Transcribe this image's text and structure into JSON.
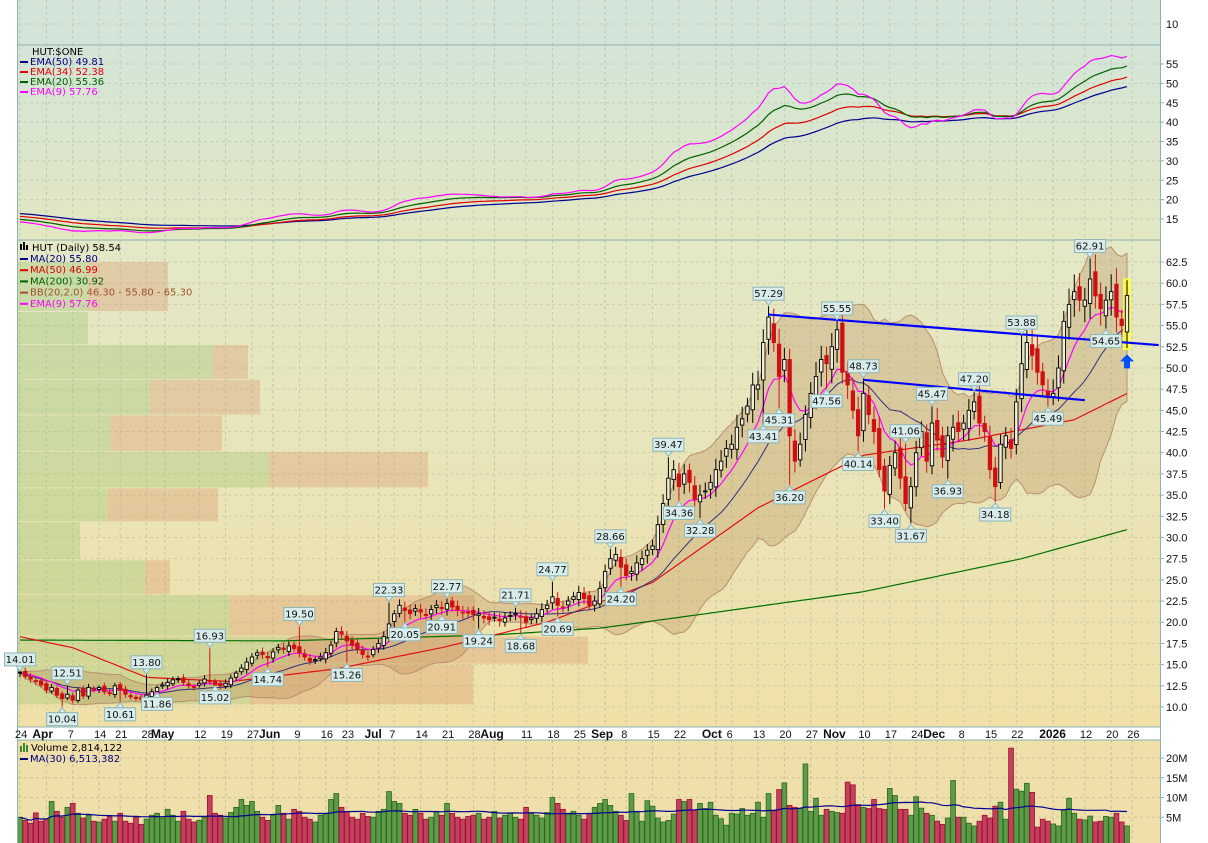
{
  "top_panel": {
    "axis_label": "10"
  },
  "ratio_panel": {
    "title": "HUT:$ONE",
    "legend": [
      {
        "label": "EMA(50) 49.81",
        "color": "#000080"
      },
      {
        "label": "EMA(34) 52.38",
        "color": "#e00000"
      },
      {
        "label": "EMA(20) 55.36",
        "color": "#006000"
      },
      {
        "label": "EMA(9) 57.76",
        "color": "#ff00ff"
      }
    ],
    "ticks": [
      15,
      20,
      25,
      30,
      35,
      40,
      45,
      50,
      55
    ]
  },
  "price_panel": {
    "title": "HUT (Daily) 58.54",
    "legend": [
      {
        "label": "MA(20) 55.80",
        "color": "#000080"
      },
      {
        "label": "MA(50) 46.99",
        "color": "#e00000"
      },
      {
        "label": "MA(200) 30.92",
        "color": "#006000"
      },
      {
        "label": "BB(20,2.0) 46.30 - 55.80 - 65.30",
        "color": "#a0522d"
      },
      {
        "label": "EMA(9) 57.76",
        "color": "#ff00ff"
      }
    ],
    "ticks": [
      "10.0",
      "12.5",
      "15.0",
      "17.5",
      "20.0",
      "22.5",
      "25.0",
      "27.5",
      "30.0",
      "32.5",
      "35.0",
      "37.5",
      "40.0",
      "42.5",
      "45.0",
      "47.5",
      "50.0",
      "52.5",
      "55.0",
      "57.5",
      "60.0",
      "62.5"
    ]
  },
  "volume_panel": {
    "title": "Volume 2,814,122",
    "ma_label": "MA(30) 6,513,382",
    "ticks": [
      "5M",
      "10M",
      "15M",
      "20M"
    ]
  },
  "x_axis": [
    {
      "label": "24",
      "i": 0,
      "bold": false
    },
    {
      "label": "Apr",
      "i": 5,
      "bold": true
    },
    {
      "label": "7",
      "i": 10,
      "bold": false
    },
    {
      "label": "14",
      "i": 15,
      "bold": false
    },
    {
      "label": "21",
      "i": 19,
      "bold": false
    },
    {
      "label": "28",
      "i": 24,
      "bold": false
    },
    {
      "label": "May",
      "i": 27.5,
      "bold": true
    },
    {
      "label": "12",
      "i": 34,
      "bold": false
    },
    {
      "label": "19",
      "i": 39,
      "bold": false
    },
    {
      "label": "27",
      "i": 44,
      "bold": false
    },
    {
      "label": "Jun",
      "i": 48,
      "bold": true
    },
    {
      "label": "9",
      "i": 53,
      "bold": false
    },
    {
      "label": "16",
      "i": 58,
      "bold": false
    },
    {
      "label": "23",
      "i": 62,
      "bold": false
    },
    {
      "label": "Jul",
      "i": 68,
      "bold": true
    },
    {
      "label": "7",
      "i": 71,
      "bold": false
    },
    {
      "label": "14",
      "i": 76,
      "bold": false
    },
    {
      "label": "21",
      "i": 81,
      "bold": false
    },
    {
      "label": "28",
      "i": 86,
      "bold": false
    },
    {
      "label": "Aug",
      "i": 90,
      "bold": true
    },
    {
      "label": "11",
      "i": 96,
      "bold": false
    },
    {
      "label": "18",
      "i": 101,
      "bold": false
    },
    {
      "label": "25",
      "i": 106,
      "bold": false
    },
    {
      "label": "Sep",
      "i": 111,
      "bold": true
    },
    {
      "label": "8",
      "i": 115,
      "bold": false
    },
    {
      "label": "15",
      "i": 120,
      "bold": false
    },
    {
      "label": "22",
      "i": 125,
      "bold": false
    },
    {
      "label": "Oct",
      "i": 132,
      "bold": true
    },
    {
      "label": "6",
      "i": 135,
      "bold": false
    },
    {
      "label": "13",
      "i": 140,
      "bold": false
    },
    {
      "label": "20",
      "i": 145,
      "bold": false
    },
    {
      "label": "27",
      "i": 150,
      "bold": false
    },
    {
      "label": "Nov",
      "i": 155,
      "bold": true
    },
    {
      "label": "10",
      "i": 160,
      "bold": false
    },
    {
      "label": "17",
      "i": 165,
      "bold": false
    },
    {
      "label": "24",
      "i": 170,
      "bold": false
    },
    {
      "label": "Dec",
      "i": 174,
      "bold": true
    },
    {
      "label": "8",
      "i": 179,
      "bold": false
    },
    {
      "label": "15",
      "i": 184,
      "bold": false
    },
    {
      "label": "22",
      "i": 189,
      "bold": false
    },
    {
      "label": "2026",
      "i": 196,
      "bold": true
    },
    {
      "label": "12",
      "i": 202,
      "bold": false
    },
    {
      "label": "20",
      "i": 207,
      "bold": false
    },
    {
      "label": "26",
      "i": 211,
      "bold": false
    }
  ],
  "chart_data": {
    "type": "candlestick",
    "symbol": "HUT",
    "period": "Daily",
    "ylim": [
      10,
      62.5
    ],
    "price": {
      "closes": [
        14.0,
        13.6,
        13.3,
        13.0,
        12.6,
        12.0,
        12.3,
        11.4,
        11.0,
        11.5,
        10.8,
        12.0,
        11.3,
        12.3,
        12.0,
        12.3,
        11.8,
        11.6,
        12.5,
        12.0,
        11.5,
        11.2,
        11.0,
        10.9,
        11.4,
        11.8,
        12.3,
        12.6,
        12.9,
        13.2,
        13.3,
        12.9,
        12.5,
        12.4,
        12.8,
        13.3,
        13.0,
        12.6,
        12.5,
        12.8,
        13.4,
        14.0,
        14.6,
        15.3,
        15.9,
        16.4,
        16.2,
        15.8,
        16.5,
        17.0,
        16.8,
        17.2,
        16.9,
        16.4,
        15.9,
        15.4,
        15.6,
        15.9,
        16.4,
        17.3,
        18.9,
        18.6,
        17.8,
        17.3,
        16.8,
        16.2,
        16.0,
        16.8,
        17.5,
        18.3,
        19.8,
        21.0,
        22.0,
        21.4,
        21.0,
        21.6,
        21.2,
        20.8,
        21.5,
        22.0,
        21.7,
        22.2,
        21.8,
        21.4,
        21.2,
        21.1,
        20.9,
        21.0,
        20.5,
        20.3,
        20.6,
        20.2,
        20.5,
        20.8,
        21.0,
        20.7,
        20.0,
        20.5,
        21.0,
        21.5,
        22.0,
        23.0,
        22.0,
        21.8,
        22.5,
        23.0,
        23.5,
        22.8,
        22.0,
        22.5,
        24.0,
        26.0,
        27.5,
        28.0,
        26.5,
        25.5,
        26.0,
        27.0,
        27.5,
        28.5,
        29.0,
        31.5,
        34.0,
        37.0,
        38.0,
        36.0,
        37.5,
        36.5,
        34.5,
        35.0,
        35.5,
        36.5,
        38.0,
        39.0,
        40.5,
        41.0,
        43.0,
        44.0,
        45.5,
        48.0,
        48.0,
        53.0,
        56.0,
        53.0,
        49.0,
        51.0,
        42.0,
        39.0,
        41.0,
        44.5,
        47.0,
        49.0,
        51.0,
        50.5,
        52.5,
        54.5,
        49.5,
        48.0,
        45.0,
        42.0,
        47.0,
        44.5,
        42.5,
        38.0,
        35.5,
        38.5,
        40.0,
        37.0,
        34.0,
        36.0,
        40.0,
        42.5,
        39.0,
        43.5,
        41.5,
        39.5,
        42.0,
        43.0,
        42.5,
        43.5,
        45.0,
        46.0,
        43.5,
        42.5,
        38.0,
        36.0,
        41.0,
        42.0,
        40.5,
        46.0,
        50.5,
        53.0,
        51.5,
        49.5,
        48.0,
        46.5,
        47.0,
        50.0,
        55.5,
        57.5,
        59.0,
        58.0,
        58.0,
        60.5,
        58.5,
        57.0,
        58.0,
        59.0,
        56.0,
        55.0,
        58.54
      ],
      "last_close": 58.54
    },
    "volume_millions": [
      5.0,
      4.2,
      3.5,
      6.1,
      4.0,
      4.5,
      9.0,
      6.5,
      5.0,
      7.5,
      8.5,
      6.0,
      4.8,
      5.5,
      4.0,
      3.8,
      4.5,
      5.2,
      4.0,
      6.0,
      4.0,
      3.5,
      5.0,
      3.2,
      4.5,
      5.5,
      6.0,
      4.8,
      7.0,
      5.5,
      4.0,
      6.5,
      4.5,
      3.8,
      4.2,
      5.0,
      10.5,
      6.0,
      5.5,
      4.8,
      6.2,
      7.5,
      9.5,
      8.0,
      9.0,
      6.5,
      5.0,
      4.2,
      5.5,
      8.0,
      6.0,
      4.5,
      7.0,
      6.5,
      5.0,
      4.5,
      3.8,
      5.5,
      6.0,
      9.5,
      11.0,
      7.5,
      6.5,
      5.0,
      4.5,
      6.0,
      5.2,
      5.0,
      6.5,
      7.0,
      11.5,
      9.0,
      8.5,
      6.0,
      5.5,
      7.0,
      6.0,
      4.5,
      5.0,
      6.5,
      5.5,
      8.5,
      6.0,
      5.0,
      4.5,
      5.2,
      5.5,
      6.0,
      4.5,
      5.0,
      6.5,
      4.8,
      5.5,
      6.0,
      5.0,
      4.5,
      7.5,
      6.0,
      5.5,
      4.8,
      6.2,
      10.0,
      8.5,
      7.0,
      6.0,
      6.5,
      5.5,
      4.5,
      6.0,
      7.5,
      8.5,
      9.5,
      8.0,
      6.5,
      5.5,
      4.2,
      11.0,
      6.5,
      4.0,
      9.2,
      7.8,
      4.8,
      3.8,
      4.2,
      5.8,
      9.5,
      9.0,
      9.5,
      6.8,
      8.5,
      7.2,
      8.8,
      5.5,
      4.6,
      3.0,
      6.0,
      5.8,
      7.2,
      5.5,
      6.0,
      8.8,
      5.0,
      11.0,
      6.8,
      12.0,
      13.7,
      8.0,
      7.5,
      7.2,
      18.5,
      6.5,
      9.8,
      5.5,
      7.0,
      6.5,
      6.2,
      6.0,
      13.9,
      13.2,
      8.2,
      7.5,
      7.2,
      9.5,
      7.2,
      7.0,
      12.3,
      10.5,
      7.0,
      7.0,
      5.5,
      10.2,
      7.3,
      6.0,
      5.5,
      4.0,
      3.2,
      4.8,
      14.3,
      5.0,
      5.0,
      3.5,
      2.8,
      4.0,
      5.5,
      4.8,
      7.8,
      8.8,
      4.5,
      22.5,
      12.1,
      11.6,
      13.6,
      11.3,
      2.5,
      4.5,
      4.0,
      3.3,
      2.8,
      6.8,
      9.8,
      6.0,
      4.5,
      4.3,
      5.3,
      3.8,
      4.0,
      5.2,
      5.0,
      6.0,
      3.8,
      2.81
    ],
    "volume_ylim_millions": [
      0,
      25
    ],
    "ma50_keypoints": [
      [
        0,
        18.3
      ],
      [
        10,
        17.0
      ],
      [
        20,
        14.5
      ],
      [
        24,
        13.5
      ],
      [
        40,
        13.0
      ],
      [
        60,
        14.5
      ],
      [
        80,
        17.0
      ],
      [
        100,
        20.0
      ],
      [
        120,
        24.7
      ],
      [
        140,
        33.5
      ],
      [
        160,
        39.7
      ],
      [
        180,
        41.5
      ],
      [
        200,
        43.9
      ],
      [
        210,
        46.99
      ]
    ],
    "ma200_keypoints": [
      [
        0,
        17.9
      ],
      [
        50,
        17.8
      ],
      [
        90,
        18.5
      ],
      [
        110,
        19.3
      ],
      [
        130,
        21.0
      ],
      [
        160,
        23.6
      ],
      [
        190,
        27.5
      ],
      [
        210,
        30.92
      ]
    ],
    "ratio_ema_seeds": {
      "ema50": 16.5,
      "ema34": 15.8,
      "ema20": 15.0,
      "ema9": 14.3
    },
    "annotations": [
      {
        "text": "14.01",
        "i": 0,
        "pos": "above"
      },
      {
        "text": "12.51",
        "i": 9,
        "pos": "above"
      },
      {
        "text": "10.04",
        "i": 8,
        "pos": "below"
      },
      {
        "text": "10.61",
        "i": 19,
        "pos": "below"
      },
      {
        "text": "13.80",
        "i": 24,
        "pos": "above"
      },
      {
        "text": "11.86",
        "i": 26,
        "pos": "below"
      },
      {
        "text": "16.93",
        "i": 36,
        "pos": "above"
      },
      {
        "text": "15.02",
        "i": 37,
        "pos": "below"
      },
      {
        "text": "14.74",
        "i": 47,
        "pos": "below"
      },
      {
        "text": "19.50",
        "i": 53,
        "pos": "above"
      },
      {
        "text": "15.26",
        "i": 62,
        "pos": "below"
      },
      {
        "text": "22.33",
        "i": 70,
        "pos": "above"
      },
      {
        "text": "20.05",
        "i": 73,
        "pos": "below"
      },
      {
        "text": "22.77",
        "i": 81,
        "pos": "above"
      },
      {
        "text": "20.91",
        "i": 80,
        "pos": "below"
      },
      {
        "text": "19.24",
        "i": 87,
        "pos": "below"
      },
      {
        "text": "21.71",
        "i": 94,
        "pos": "above"
      },
      {
        "text": "18.68",
        "i": 95,
        "pos": "below"
      },
      {
        "text": "24.77",
        "i": 101,
        "pos": "above"
      },
      {
        "text": "20.69",
        "i": 102,
        "pos": "below"
      },
      {
        "text": "28.66",
        "i": 112,
        "pos": "above"
      },
      {
        "text": "24.20",
        "i": 114,
        "pos": "below"
      },
      {
        "text": "39.47",
        "i": 123,
        "pos": "above"
      },
      {
        "text": "34.36",
        "i": 125,
        "pos": "below"
      },
      {
        "text": "32.28",
        "i": 129,
        "pos": "below"
      },
      {
        "text": "43.41",
        "i": 141,
        "pos": "below"
      },
      {
        "text": "57.29",
        "i": 142,
        "pos": "above"
      },
      {
        "text": "45.31",
        "i": 144,
        "pos": "below"
      },
      {
        "text": "36.20",
        "i": 146,
        "pos": "below"
      },
      {
        "text": "47.56",
        "i": 153,
        "pos": "below"
      },
      {
        "text": "55.55",
        "i": 155,
        "pos": "above"
      },
      {
        "text": "48.73",
        "i": 160,
        "pos": "above"
      },
      {
        "text": "40.14",
        "i": 159,
        "pos": "below"
      },
      {
        "text": "33.40",
        "i": 164,
        "pos": "below"
      },
      {
        "text": "41.06",
        "i": 168,
        "pos": "above"
      },
      {
        "text": "31.67",
        "i": 169,
        "pos": "below"
      },
      {
        "text": "45.47",
        "i": 173,
        "pos": "above"
      },
      {
        "text": "36.93",
        "i": 176,
        "pos": "below"
      },
      {
        "text": "47.20",
        "i": 181,
        "pos": "above"
      },
      {
        "text": "34.18",
        "i": 185,
        "pos": "below"
      },
      {
        "text": "53.88",
        "i": 190,
        "pos": "above"
      },
      {
        "text": "45.49",
        "i": 195,
        "pos": "below"
      },
      {
        "text": "62.91",
        "i": 203,
        "pos": "above"
      },
      {
        "text": "54.65",
        "i": 206,
        "pos": "below"
      }
    ],
    "trendlines": [
      {
        "from": [
          142,
          56.3
        ],
        "to": [
          216,
          52.7
        ],
        "color": "#0000ff"
      },
      {
        "from": [
          160,
          48.6
        ],
        "to": [
          202,
          46.2
        ],
        "color": "#0000ff"
      }
    ],
    "signal_arrow": {
      "i": 210,
      "price": 51.6,
      "color": "#0050ff"
    },
    "highlight_last_bar_color": "#ffff40",
    "volume_by_price": [
      {
        "range": [
          56.6,
          62.5
        ],
        "up_relative": 70,
        "down_relative": 80
      },
      {
        "range": [
          52.7,
          56.6
        ],
        "up_relative": 70,
        "down_relative": 0
      },
      {
        "range": [
          48.6,
          52.7
        ],
        "up_relative": 195,
        "down_relative": 35
      },
      {
        "range": [
          44.4,
          48.6
        ],
        "up_relative": 132,
        "down_relative": 110
      },
      {
        "range": [
          40.1,
          44.4
        ],
        "up_relative": 92,
        "down_relative": 112
      },
      {
        "range": [
          35.8,
          40.1
        ],
        "up_relative": 250,
        "down_relative": 160
      },
      {
        "range": [
          31.8,
          35.8
        ],
        "up_relative": 90,
        "down_relative": 110
      },
      {
        "range": [
          27.3,
          31.8
        ],
        "up_relative": 62,
        "down_relative": 0
      },
      {
        "range": [
          23.2,
          27.3
        ],
        "up_relative": 127,
        "down_relative": 25
      },
      {
        "range": [
          18.3,
          23.2
        ],
        "up_relative": 212,
        "down_relative": 245
      },
      {
        "range": [
          15.0,
          18.3
        ],
        "up_relative": 270,
        "down_relative": 300
      },
      {
        "range": [
          10.2,
          15.0
        ],
        "up_relative": 232,
        "down_relative": 223
      }
    ],
    "colors": {
      "up_candle": "#000000",
      "down_candle": "#d01010",
      "vol_up": "#5e9a48",
      "vol_down": "#c2415f",
      "bb_fill": "#b4824a"
    }
  }
}
